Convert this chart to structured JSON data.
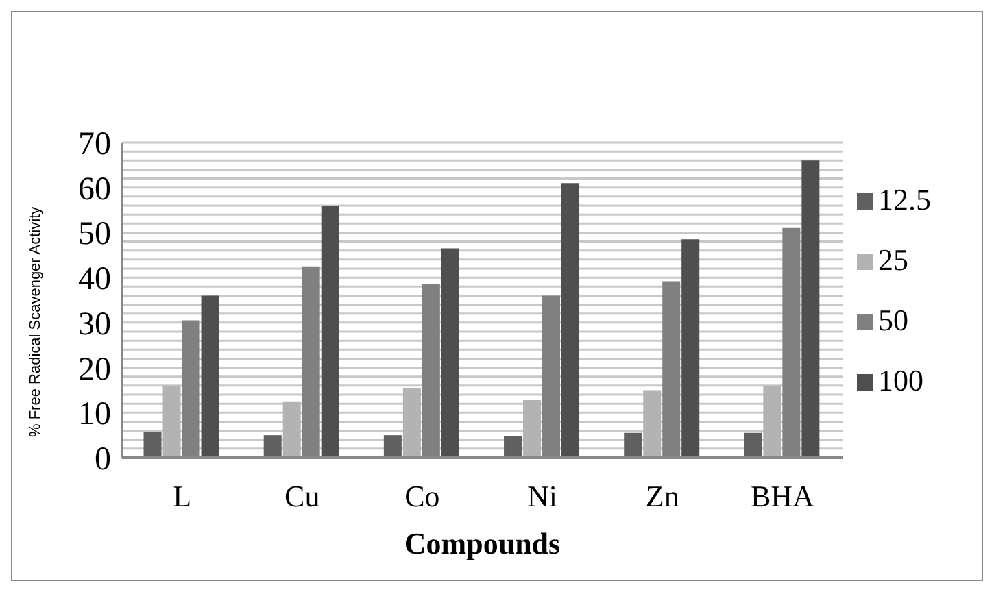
{
  "chart_data": {
    "type": "bar",
    "xlabel": "Compounds",
    "ylabel": "% Free Radical Scavenger Activity",
    "categories": [
      "L",
      "Cu",
      "Co",
      "Ni",
      "Zn",
      "BHA"
    ],
    "series": [
      {
        "name": "12.5",
        "color": "#606060",
        "values": [
          5.8,
          5,
          5,
          4.8,
          5.5,
          5.5
        ]
      },
      {
        "name": "25",
        "color": "#b3b3b3",
        "values": [
          16,
          12.5,
          15.5,
          12.8,
          15,
          16
        ]
      },
      {
        "name": "50",
        "color": "#808080",
        "values": [
          30.5,
          42.5,
          38.5,
          36,
          39.2,
          51
        ]
      },
      {
        "name": "100",
        "color": "#4f4f4f",
        "values": [
          36,
          56,
          46.5,
          61,
          48.5,
          66
        ]
      }
    ],
    "ylim": [
      0,
      70
    ],
    "yticks": [
      0,
      {
        "value": 2,
        "label": null
      },
      {
        "value": 4,
        "label": null
      },
      {
        "value": 6,
        "label": null
      },
      {
        "value": 8,
        "label": null
      },
      10,
      {
        "value": 12,
        "label": null
      },
      {
        "value": 14,
        "label": null
      },
      {
        "value": 16,
        "label": null
      },
      {
        "value": 18,
        "label": null
      },
      20,
      {
        "value": 22,
        "label": null
      },
      {
        "value": 24,
        "label": null
      },
      {
        "value": 26,
        "label": null
      },
      {
        "value": 28,
        "label": null
      },
      30,
      {
        "value": 32,
        "label": null
      },
      {
        "value": 34,
        "label": null
      },
      {
        "value": 36,
        "label": null
      },
      {
        "value": 38,
        "label": null
      },
      40,
      {
        "value": 42,
        "label": null
      },
      {
        "value": 44,
        "label": null
      },
      {
        "value": 46,
        "label": null
      },
      {
        "value": 48,
        "label": null
      },
      50,
      {
        "value": 52,
        "label": null
      },
      {
        "value": 54,
        "label": null
      },
      {
        "value": 56,
        "label": null
      },
      {
        "value": 58,
        "label": null
      },
      60,
      {
        "value": 62,
        "label": null
      },
      {
        "value": 64,
        "label": null
      },
      {
        "value": 66,
        "label": null
      },
      {
        "value": 68,
        "label": null
      },
      70
    ],
    "grid": "y",
    "legend": "right"
  }
}
